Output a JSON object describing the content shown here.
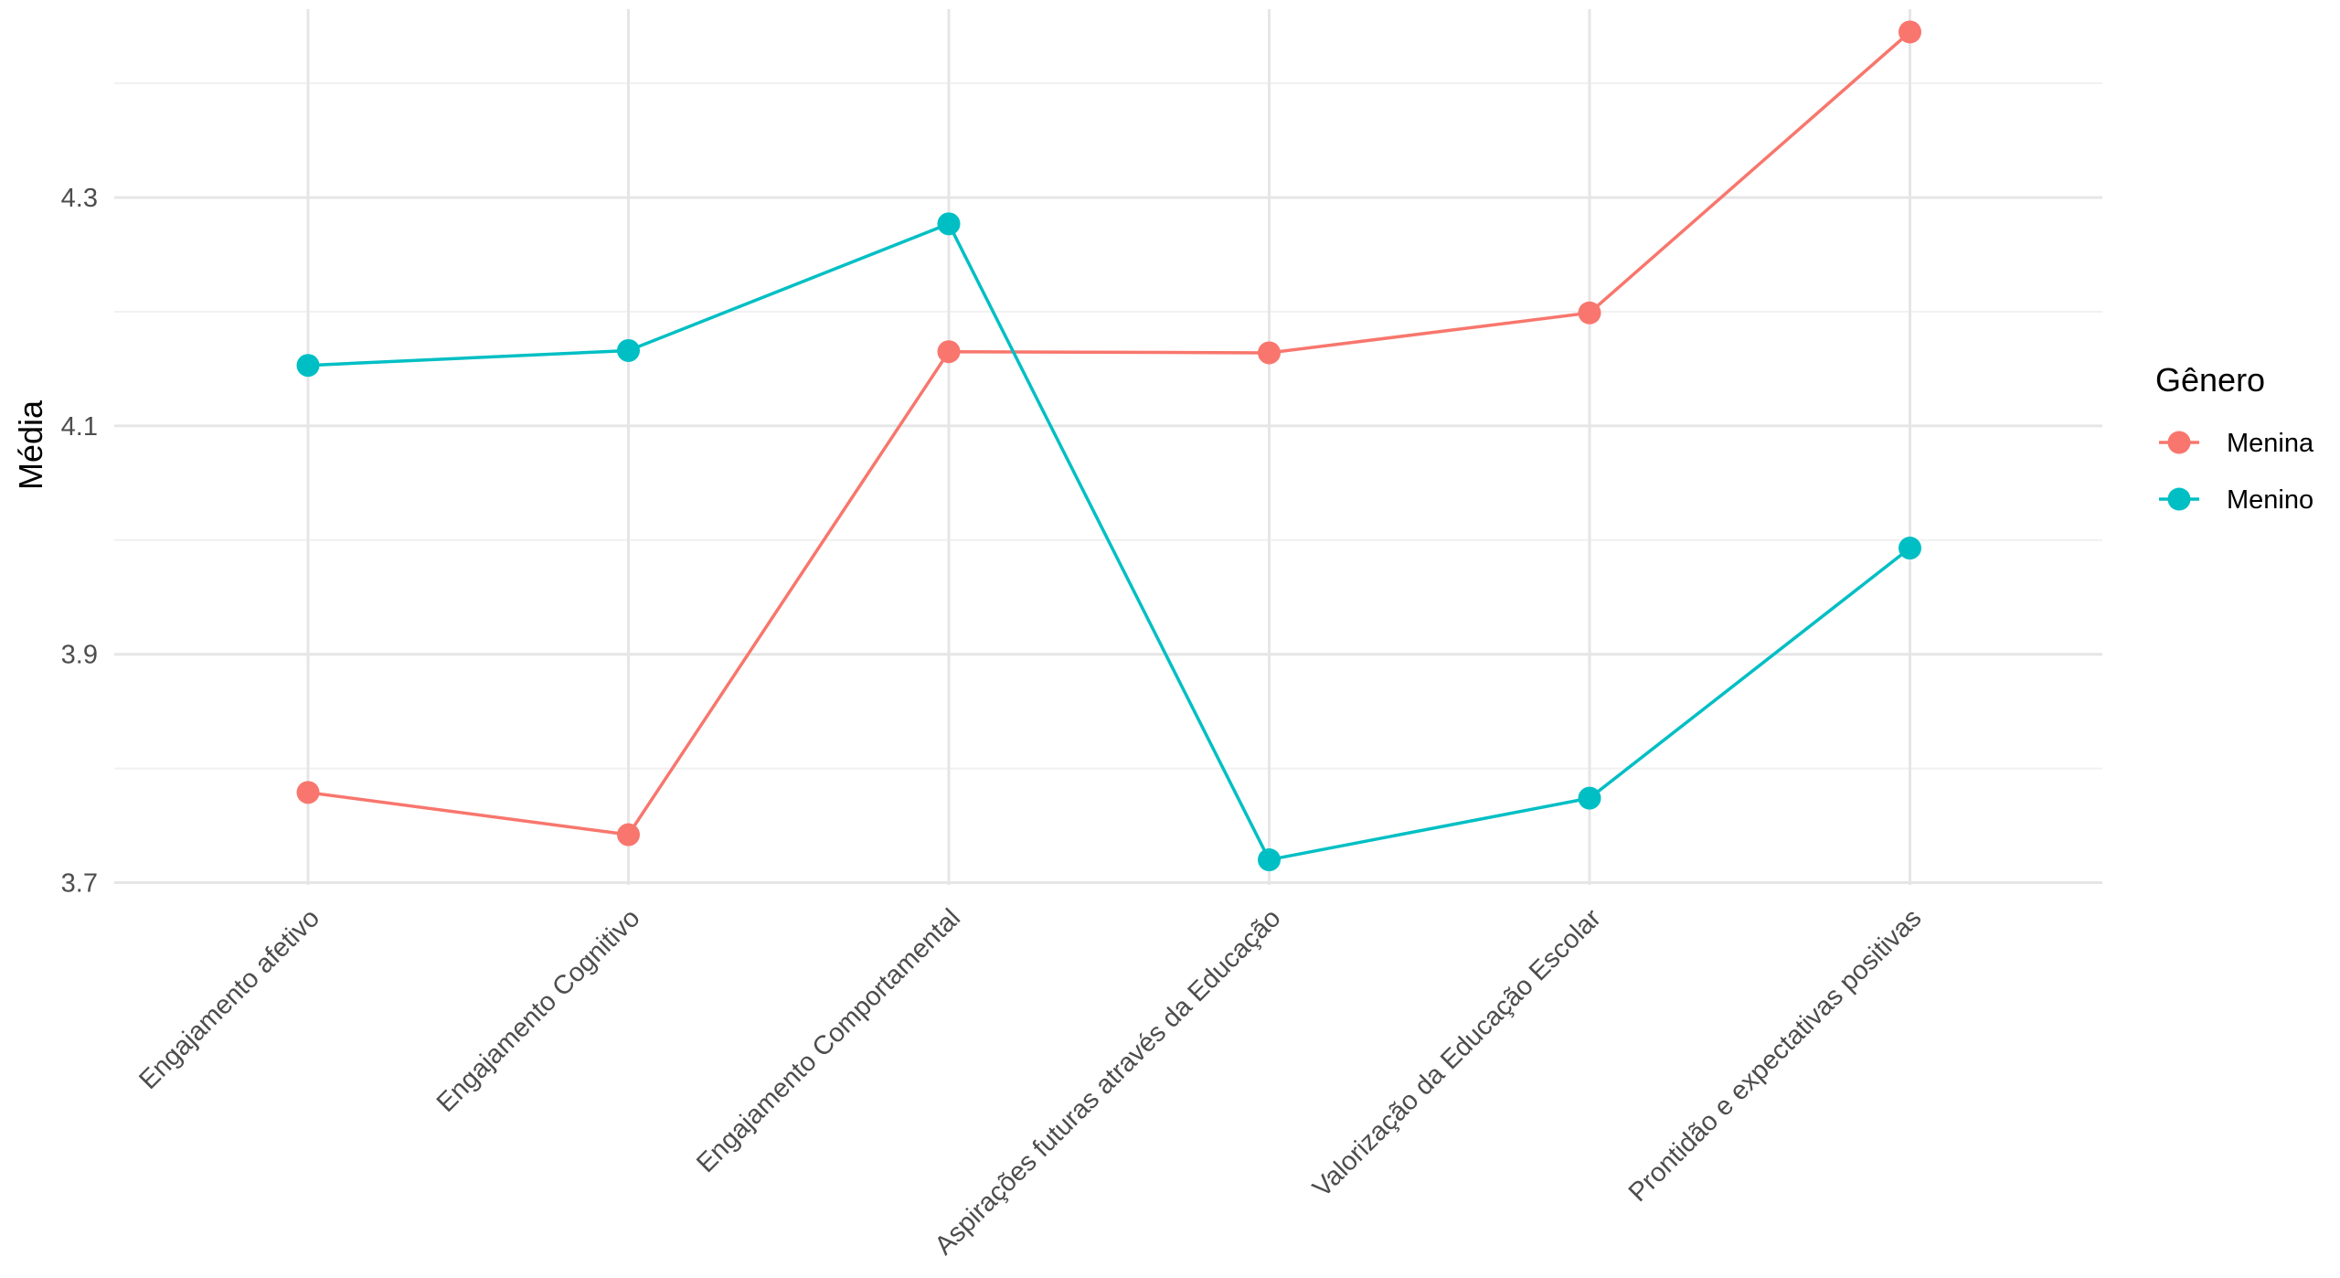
{
  "chart_data": {
    "type": "line",
    "title": "",
    "xlabel": "",
    "ylabel": "Média",
    "categories": [
      "Engajamento afetivo",
      "Engajamento Cognitivo",
      "Engajamento Comportamental",
      "Aspirações futuras através da Educação",
      "Valorização da Educação Escolar",
      "Prontidão e expectativas positivas"
    ],
    "series": [
      {
        "name": "Menina",
        "color": "#F8766D",
        "values": [
          3.779,
          3.742,
          4.165,
          4.164,
          4.199,
          4.445
        ]
      },
      {
        "name": "Menino",
        "color": "#00BFC4",
        "values": [
          4.153,
          4.166,
          4.277,
          3.72,
          3.774,
          3.993
        ]
      }
    ],
    "ylim": [
      3.698,
      4.465
    ],
    "yticks": [
      3.7,
      3.9,
      4.1,
      4.3
    ],
    "ytick_labels": [
      "3.7",
      "3.9",
      "4.1",
      "4.3"
    ],
    "grid": true,
    "legend": {
      "title": "Gênero",
      "position": "right"
    }
  }
}
